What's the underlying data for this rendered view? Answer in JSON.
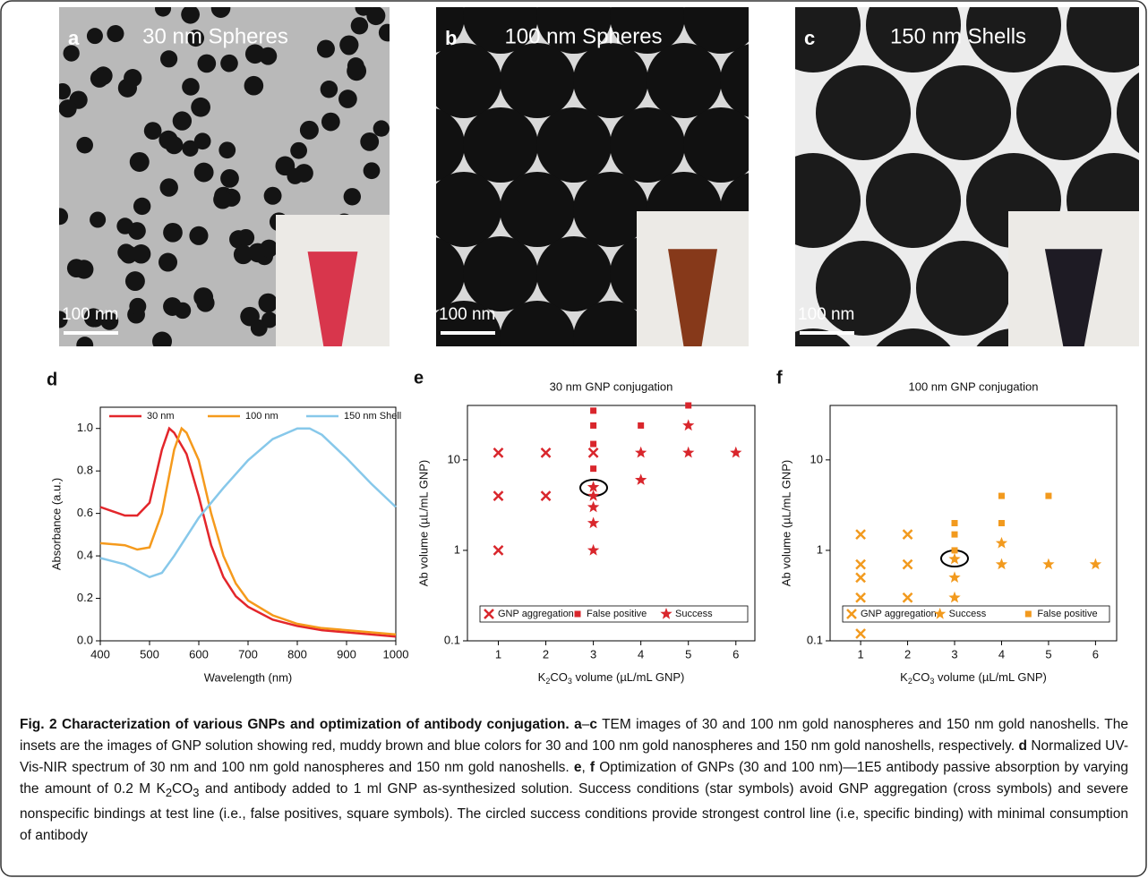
{
  "panels": [
    {
      "letter": "a",
      "title": "30 nm Spheres",
      "scale_bar": "100 nm",
      "inset_color": "#d8364c"
    },
    {
      "letter": "b",
      "title": "100 nm Spheres",
      "scale_bar": "100 nm",
      "inset_color": "#86391a"
    },
    {
      "letter": "c",
      "title": "150 nm Shells",
      "scale_bar": "100 nm",
      "inset_color": "#1e1b24"
    }
  ],
  "chart_data": [
    {
      "type": "line",
      "letter": "d",
      "x_label": "Wavelength (nm)",
      "y_label": "Absorbance (a.u.)",
      "xlim": [
        400,
        1000
      ],
      "ylim": [
        0,
        1.1
      ],
      "xticks": [
        400,
        500,
        600,
        700,
        800,
        900,
        1000
      ],
      "yticks": [
        {
          "value": 0,
          "label": "0.0"
        },
        {
          "value": 0.2,
          "label": "0.2"
        },
        {
          "value": 0.4,
          "label": "0.4"
        },
        {
          "value": 0.6,
          "label": "0.6"
        },
        {
          "value": 0.8,
          "label": "0.8"
        },
        {
          "value": 1,
          "label": "1.0"
        }
      ],
      "legend": "top",
      "series": [
        {
          "name": "30 nm",
          "color": "#e3262b",
          "x": [
            400,
            425,
            450,
            475,
            500,
            525,
            540,
            550,
            575,
            600,
            625,
            650,
            675,
            700,
            750,
            800,
            850,
            900,
            950,
            1000
          ],
          "values": [
            0.63,
            0.61,
            0.59,
            0.59,
            0.65,
            0.9,
            1,
            0.98,
            0.88,
            0.68,
            0.45,
            0.3,
            0.21,
            0.16,
            0.1,
            0.07,
            0.05,
            0.04,
            0.03,
            0.02
          ]
        },
        {
          "name": "100 nm",
          "color": "#f59a1c",
          "x": [
            400,
            450,
            475,
            500,
            525,
            550,
            565,
            575,
            600,
            625,
            650,
            675,
            700,
            750,
            800,
            850,
            900,
            950,
            1000
          ],
          "values": [
            0.46,
            0.45,
            0.43,
            0.44,
            0.6,
            0.9,
            1,
            0.98,
            0.85,
            0.6,
            0.4,
            0.27,
            0.19,
            0.12,
            0.08,
            0.06,
            0.05,
            0.04,
            0.03
          ]
        },
        {
          "name": "150 nm Shell",
          "color": "#87c8ea",
          "x": [
            400,
            450,
            475,
            500,
            525,
            550,
            575,
            600,
            650,
            700,
            750,
            800,
            825,
            850,
            900,
            950,
            1000
          ],
          "values": [
            0.39,
            0.36,
            0.33,
            0.3,
            0.32,
            0.4,
            0.49,
            0.58,
            0.72,
            0.85,
            0.95,
            1,
            1,
            0.97,
            0.86,
            0.74,
            0.63
          ]
        }
      ]
    },
    {
      "type": "scatter",
      "letter": "e",
      "title": "30 nm GNP conjugation",
      "log_y": true,
      "x_label": [
        {
          "text": "K"
        },
        {
          "text": "2",
          "sub": true
        },
        {
          "text": "CO"
        },
        {
          "text": "3",
          "sub": true
        },
        {
          "text": " volume (µL/mL GNP)"
        }
      ],
      "y_label": "Ab volume (µL/mL GNP)",
      "xlim": [
        0.35,
        6.4
      ],
      "ylim": [
        0.1,
        40
      ],
      "xticks": [
        1,
        2,
        3,
        4,
        5,
        6
      ],
      "yticks": [
        0.1,
        1,
        10
      ],
      "legend": "bottom",
      "series": [
        {
          "name": "GNP aggregation",
          "marker": "cross",
          "color": "#d9262c",
          "x": [
            1,
            1,
            1,
            2,
            2,
            3
          ],
          "values": [
            12,
            4,
            1,
            12,
            4,
            12
          ]
        },
        {
          "name": "False positive",
          "marker": "square",
          "color": "#d9262c",
          "x": [
            3,
            3,
            3,
            3,
            4,
            5
          ],
          "values": [
            35,
            24,
            15,
            8,
            24,
            40
          ]
        },
        {
          "name": "Success",
          "marker": "star",
          "color": "#d9262c",
          "x": [
            3,
            3,
            3,
            3,
            3,
            4,
            4,
            5,
            5,
            6
          ],
          "values": [
            5,
            4,
            3,
            2,
            1,
            12,
            6,
            24,
            12,
            12
          ]
        }
      ]
    },
    {
      "type": "scatter",
      "letter": "f",
      "title": "100 nm GNP conjugation",
      "log_y": true,
      "x_label": [
        {
          "text": "K"
        },
        {
          "text": "2",
          "sub": true
        },
        {
          "text": "CO"
        },
        {
          "text": "3",
          "sub": true
        },
        {
          "text": " volume (µL/mL GNP)"
        }
      ],
      "y_label": "Ab volume (µL/mL GNP)",
      "xlim": [
        0.35,
        6.45
      ],
      "ylim": [
        0.1,
        40
      ],
      "xticks": [
        1,
        2,
        3,
        4,
        5,
        6
      ],
      "yticks": [
        0.1,
        1,
        10
      ],
      "legend": "bottom",
      "series": [
        {
          "name": "GNP aggregation",
          "marker": "cross",
          "color": "#f29a1e",
          "x": [
            1,
            1,
            1,
            1,
            1,
            2,
            2,
            2
          ],
          "values": [
            1.5,
            0.7,
            0.5,
            0.3,
            0.12,
            1.5,
            0.7,
            0.3
          ]
        },
        {
          "name": "Success",
          "marker": "star",
          "color": "#f29a1e",
          "x": [
            3,
            3,
            3,
            4,
            4,
            5,
            6
          ],
          "values": [
            0.8,
            0.5,
            0.3,
            1.2,
            0.7,
            0.7,
            0.7
          ]
        },
        {
          "name": "False positive",
          "marker": "square",
          "color": "#f29a1e",
          "x": [
            3,
            3,
            3,
            4,
            4,
            5
          ],
          "values": [
            2,
            1.5,
            1,
            4,
            2,
            4
          ]
        }
      ]
    }
  ],
  "caption": [
    {
      "text": "Fig. 2 Characterization of various GNPs and optimization of antibody conjugation. ",
      "style": "bold"
    },
    {
      "text": "a",
      "style": "bold"
    },
    {
      "text": "–",
      "style": "normal"
    },
    {
      "text": "c",
      "style": "bold"
    },
    {
      "text": " TEM images of 30 and 100 nm gold nanospheres and 150 nm gold nanoshells. The insets are the images of GNP solution showing red, muddy brown and blue colors for 30 and 100 nm gold nanospheres and 150 nm gold nanoshells, respectively. ",
      "style": "normal"
    },
    {
      "text": "d",
      "style": "bold"
    },
    {
      "text": " Normalized UV-Vis-NIR spectrum of 30 nm and 100 nm gold nanospheres and 150 nm gold nanoshells. ",
      "style": "normal"
    },
    {
      "text": "e",
      "style": "bold"
    },
    {
      "text": ", ",
      "style": "normal"
    },
    {
      "text": "f",
      "style": "bold"
    },
    {
      "text": " Optimization of GNPs (30 and 100 nm)—1E5 antibody passive absorption by varying the amount of 0.2 M K",
      "style": "normal"
    },
    {
      "text": "2",
      "style": "sub"
    },
    {
      "text": "CO",
      "style": "normal"
    },
    {
      "text": "3",
      "style": "sub"
    },
    {
      "text": " and antibody added to 1 ml GNP as-synthesized solution. Success conditions (star symbols) avoid GNP aggregation (cross symbols) and severe nonspecific bindings at test line (i.e., false positives, square symbols). The circled success conditions provide strongest control line (i.e, specific binding) with minimal consumption of antibody",
      "style": "normal"
    }
  ]
}
